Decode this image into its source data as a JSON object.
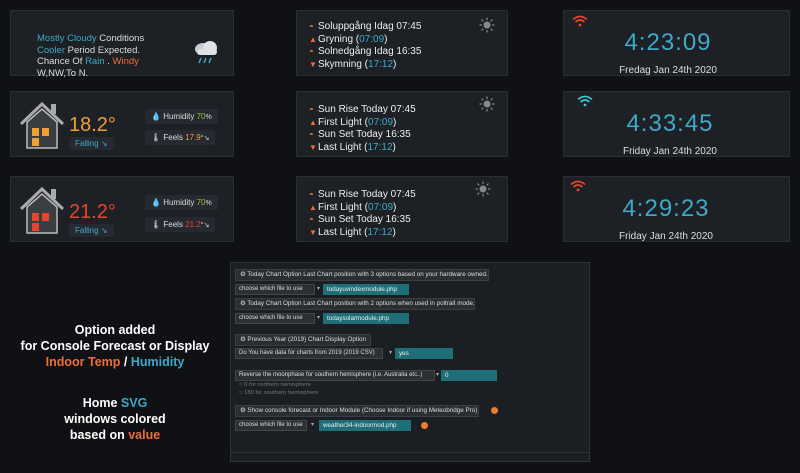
{
  "forecast": {
    "line1a": "Mostly Cloudy",
    "line1b": " Conditions",
    "line2a": "Cooler",
    "line2b": " Period Expected.",
    "line3a": "Chance Of ",
    "line3b": "Rain",
    "line3c": " . ",
    "line3d": "Windy",
    "line4": "W,NW,To N."
  },
  "sun_rows": [
    {
      "rise_label": "Soluppgång Idag 07:45",
      "first_label": "Gryning (",
      "first_time": "07:09",
      "first_close": ")",
      "set_label": "Solnedgång Idag 16:35",
      "last_label": "Skymning (",
      "last_time": "17:12",
      "last_close": ")"
    },
    {
      "rise_label": "Sun Rise Today 07:45",
      "first_label": "First Light (",
      "first_time": "07:09",
      "first_close": ")",
      "set_label": "Sun Set Today 16:35",
      "last_label": "Last Light (",
      "last_time": "17:12",
      "last_close": ")"
    },
    {
      "rise_label": "Sun Rise Today 07:45",
      "first_label": "First Light (",
      "first_time": "07:09",
      "first_close": ")",
      "set_label": "Sun Set Today 16:35",
      "last_label": "Last Light (",
      "last_time": "17:12",
      "last_close": ")"
    }
  ],
  "clocks": [
    {
      "time": "4:23:09",
      "date": "Fredag Jan 24th 2020",
      "wifi_color": "#e8452c"
    },
    {
      "time": "4:33:45",
      "date": "Friday Jan 24th 2020",
      "wifi_color": "#3fc4c9"
    },
    {
      "time": "4:29:23",
      "date": "Friday Jan 24th 2020",
      "wifi_color": "#e8452c"
    }
  ],
  "temps": [
    {
      "value": "18.2°",
      "color": "#f0a030",
      "trend": "Falling",
      "humidity_label": "Humidity",
      "humidity_value": "70",
      "humidity_unit": "%",
      "feels_label": "Feels",
      "feels_value": "17.9",
      "feels_unit": "°"
    },
    {
      "value": "21.2°",
      "color": "#e8452c",
      "trend": "Falling",
      "humidity_label": "Humidity",
      "humidity_value": "70",
      "humidity_unit": "%",
      "feels_label": "Feels",
      "feels_value": "21.2",
      "feels_unit": "°"
    }
  ],
  "settings": {
    "h1": "⚙ Today Chart Option Last Chart position with 3 options based on your hardware owned.",
    "sel1": "choose which file to use",
    "val1": "todayuvindexmodule.php",
    "h2": "⚙ Today Chart Option Last Chart position with 2 options when used in poltrait mode.",
    "sel2": "choose which file to use",
    "val2": "todaysolarmodule.php",
    "h3": "⚙ Previous Year (2019) Chart Display Option",
    "sel3": "Do You have data for charts from 2019 (2019 CSV)",
    "val3": "yes",
    "sel4": "Reverse the moonphase for southern hemisphere (i.e. Australia etc..)",
    "val4": "0",
    "note1": "0 for northern hemisphere",
    "note2": "180 for southern hemisphere",
    "h5": "⚙ Show console forecast or Indoor Module (Choose Indoor if using Meteobridge Pro)",
    "sel5": "choose which file to use",
    "val5": "weather34-indoormod.php"
  },
  "caption1": {
    "l1": "Option added",
    "l2": "for Console Forecast or Display",
    "l3a": "Indoor Temp",
    "l3b": " / ",
    "l3c": "Humidity"
  },
  "caption2": {
    "l1a": "Home ",
    "l1b": "SVG",
    "l2": "windows colored",
    "l3a": "based on ",
    "l3b": "value"
  }
}
